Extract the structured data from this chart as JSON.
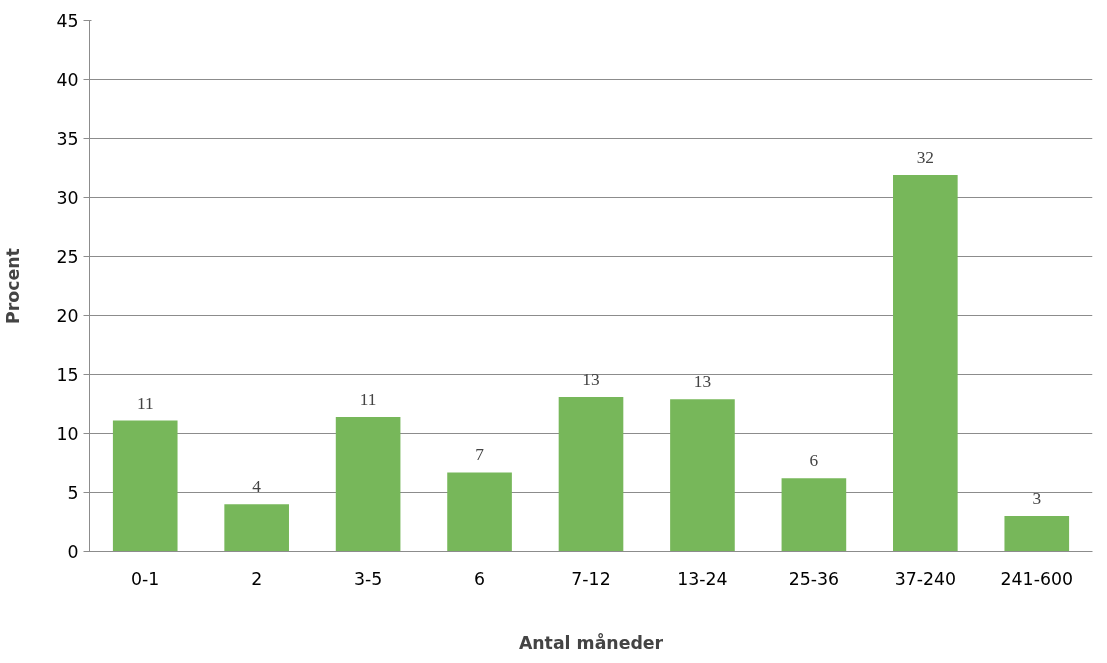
{
  "chart_data": {
    "type": "bar",
    "xlabel": "Antal måneder",
    "ylabel": "Procent",
    "categories": [
      "0-1",
      "2",
      "3-5",
      "6",
      "7-12",
      "13-24",
      "25-36",
      "37-240",
      "241-600"
    ],
    "values": [
      11.1,
      4.0,
      11.4,
      6.7,
      13.1,
      12.9,
      6.2,
      31.9,
      3.0
    ],
    "value_labels": [
      "11",
      "4",
      "11",
      "7",
      "13",
      "13",
      "6",
      "32",
      "3"
    ],
    "color": "#77b75a",
    "ylim": [
      0,
      45
    ],
    "yticks": [
      0,
      5,
      10,
      15,
      20,
      25,
      30,
      35,
      40,
      45
    ],
    "grid": "y"
  }
}
